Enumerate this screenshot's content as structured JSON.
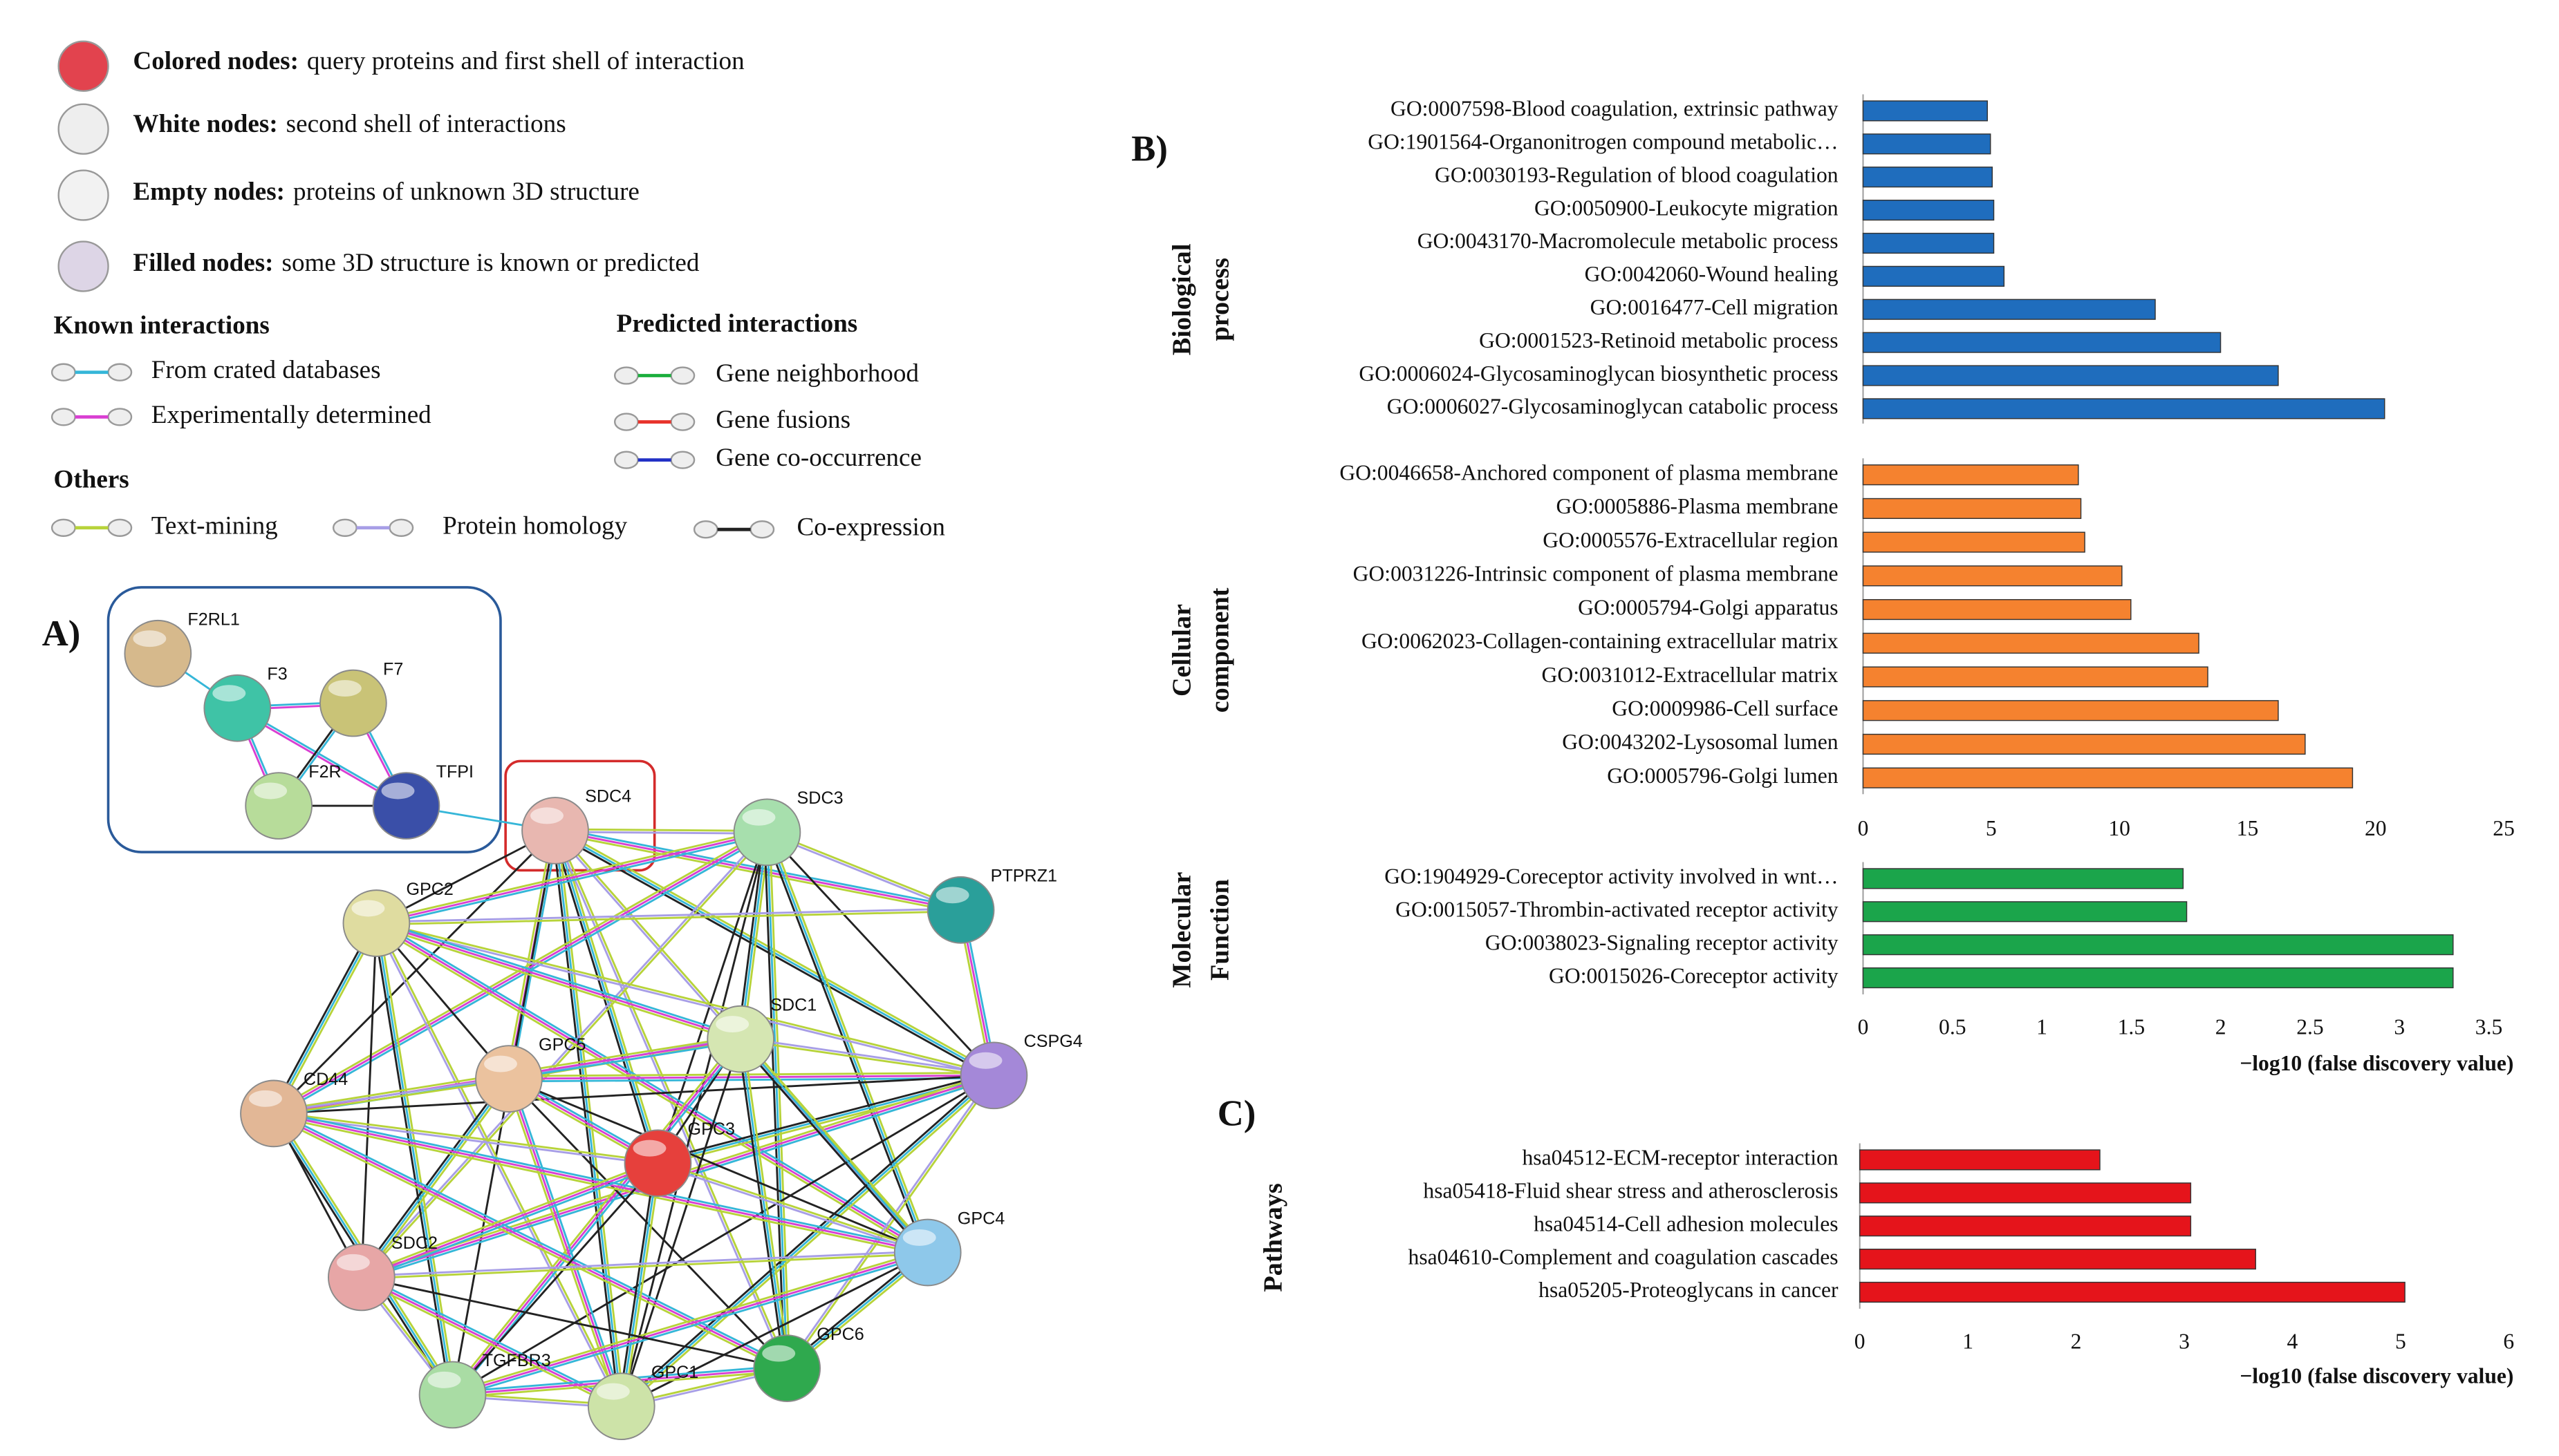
{
  "panels": {
    "a": "A)",
    "b": "B)",
    "c": "C)"
  },
  "legend": {
    "node_types": [
      {
        "bold": "Colored nodes:",
        "text": "query proteins and first shell of interaction"
      },
      {
        "bold": "White nodes:",
        "text": "second shell of interactions"
      },
      {
        "bold": "Empty nodes:",
        "text": "proteins of unknown 3D structure"
      },
      {
        "bold": "Filled nodes:",
        "text": "some 3D structure is known or predicted"
      }
    ],
    "known": {
      "title": "Known interactions",
      "items": [
        {
          "label": "From crated databases",
          "color": "#35b6d8"
        },
        {
          "label": "Experimentally determined",
          "color": "#d93fd2"
        }
      ]
    },
    "predicted": {
      "title": "Predicted interactions",
      "items": [
        {
          "label": "Gene neighborhood",
          "color": "#1aae3c"
        },
        {
          "label": "Gene fusions",
          "color": "#e8342c"
        },
        {
          "label": "Gene co-occurrence",
          "color": "#2231c6"
        }
      ]
    },
    "others": {
      "title": "Others",
      "items": [
        {
          "label": "Text-mining",
          "color": "#b7d33a"
        },
        {
          "label": "Protein homology",
          "color": "#a79ee6"
        },
        {
          "label": "Co-expression",
          "color": "#222222"
        }
      ]
    }
  },
  "network": {
    "nodes": [
      {
        "label": "F2RL1",
        "color": "#d6b98c"
      },
      {
        "label": "F3",
        "color": "#3fc3a6"
      },
      {
        "label": "F7",
        "color": "#c9c377"
      },
      {
        "label": "F2R",
        "color": "#b7dc9a"
      },
      {
        "label": "TFPI",
        "color": "#3a4fa8"
      },
      {
        "label": "SDC4",
        "color": "#e8b7b0"
      },
      {
        "label": "SDC3",
        "color": "#a7dfad"
      },
      {
        "label": "PTPRZ1",
        "color": "#2a9f9a"
      },
      {
        "label": "GPC2",
        "color": "#dfdca0"
      },
      {
        "label": "CSPG4",
        "color": "#a488d8"
      },
      {
        "label": "SDC1",
        "color": "#d5e6b2"
      },
      {
        "label": "GPC5",
        "color": "#ebc29e"
      },
      {
        "label": "CD44",
        "color": "#e2b796"
      },
      {
        "label": "GPC3",
        "color": "#e6403c"
      },
      {
        "label": "GPC4",
        "color": "#8ec8ea"
      },
      {
        "label": "SDC2",
        "color": "#e7a6a6"
      },
      {
        "label": "TGFBR3",
        "color": "#a9dca4"
      },
      {
        "label": "GPC1",
        "color": "#cde3a8"
      },
      {
        "label": "GPC6",
        "color": "#2fa94e"
      }
    ]
  },
  "chart_data": [
    {
      "type": "bar",
      "ylabel": [
        "Biological",
        "process"
      ],
      "color": "#1f6dbd",
      "xlim": [
        0,
        25
      ],
      "categories": [
        "GO:0007598-Blood coagulation, extrinsic pathway",
        "GO:1901564-Organonitrogen compound metabolic…",
        "GO:0030193-Regulation of blood coagulation",
        "GO:0050900-Leukocyte migration",
        "GO:0043170-Macromolecule metabolic process",
        "GO:0042060-Wound healing",
        "GO:0016477-Cell migration",
        "GO:0001523-Retinoid metabolic process",
        "GO:0006024-Glycosaminoglycan biosynthetic process",
        "GO:0006027-Glycosaminoglycan catabolic process"
      ],
      "values": [
        4.85,
        4.97,
        5.04,
        5.1,
        5.1,
        5.5,
        11.4,
        13.95,
        16.2,
        20.35
      ]
    },
    {
      "type": "bar",
      "ylabel": [
        "Cellular",
        "component"
      ],
      "color": "#f5822f",
      "xlim": [
        0,
        25
      ],
      "xticks": [
        0,
        5,
        10,
        15,
        20,
        25
      ],
      "categories": [
        "GO:0046658-Anchored component of plasma membrane",
        "GO:0005886-Plasma membrane",
        "GO:0005576-Extracellular region",
        "GO:0031226-Intrinsic component of plasma membrane",
        "GO:0005794-Golgi apparatus",
        "GO:0062023-Collagen-containing extracellular matrix",
        "GO:0031012-Extracellular matrix",
        "GO:0009986-Cell surface",
        "GO:0043202-Lysosomal lumen",
        "GO:0005796-Golgi lumen"
      ],
      "values": [
        8.4,
        8.5,
        8.65,
        10.1,
        10.45,
        13.1,
        13.45,
        16.2,
        17.25,
        19.1
      ]
    },
    {
      "type": "bar",
      "ylabel": [
        "Molecular",
        "Function"
      ],
      "color": "#1ba54b",
      "xlim": [
        0,
        3.5
      ],
      "xticks": [
        0,
        0.5,
        1,
        1.5,
        2,
        2.5,
        3,
        3.5
      ],
      "xlabel": "−log10 (false discovery value)",
      "categories": [
        "GO:1904929-Coreceptor activity involved in wnt…",
        "GO:0015057-Thrombin-activated receptor activity",
        "GO:0038023-Signaling receptor activity",
        "GO:0015026-Coreceptor activity"
      ],
      "values": [
        1.79,
        1.81,
        3.3,
        3.3
      ]
    },
    {
      "type": "bar",
      "ylabel": [
        "Pathways"
      ],
      "color": "#e5141b",
      "xlim": [
        0,
        6
      ],
      "xticks": [
        0,
        1,
        2,
        3,
        4,
        5,
        6
      ],
      "xlabel": "−log10 (false discovery value)",
      "categories": [
        "hsa04512-ECM-receptor interaction",
        "hsa05418-Fluid shear stress and atherosclerosis",
        "hsa04514-Cell adhesion molecules",
        "hsa04610-Complement and coagulation cascades",
        "hsa05205-Proteoglycans in cancer"
      ],
      "values": [
        2.22,
        3.06,
        3.06,
        3.66,
        5.04
      ]
    }
  ]
}
